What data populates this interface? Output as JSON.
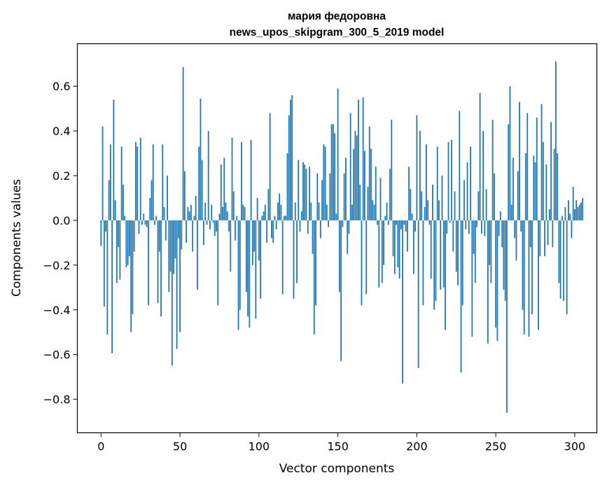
{
  "chart_data": {
    "type": "bar",
    "title": "мария федоровна",
    "subtitle": "news_upos_skipgram_300_5_2019 model",
    "xlabel": "Vector components",
    "ylabel": "Components values",
    "xlim": [
      -15,
      314
    ],
    "ylim": [
      -0.95,
      0.79
    ],
    "xticks": [
      0,
      50,
      100,
      150,
      200,
      250,
      300
    ],
    "yticks": [
      -0.8,
      -0.6,
      -0.4,
      -0.2,
      0.0,
      0.2,
      0.4,
      0.6
    ],
    "ytick_labels": [
      "−0.8",
      "−0.6",
      "−0.4",
      "−0.2",
      "0.0",
      "0.2",
      "0.4",
      "0.6"
    ],
    "grid": false,
    "bar_color": "#1f77b4",
    "values": [
      -0.115,
      0.42,
      -0.385,
      -0.05,
      -0.51,
      0.18,
      0.34,
      -0.595,
      0.54,
      0.09,
      -0.28,
      -0.12,
      -0.265,
      0.33,
      0.16,
      0.02,
      -0.21,
      -0.2,
      -0.16,
      -0.5,
      -0.42,
      -0.14,
      0.35,
      0.33,
      -0.06,
      0.37,
      -0.02,
      0.03,
      -0.02,
      -0.03,
      -0.38,
      0.1,
      0.18,
      0.34,
      -0.02,
      0.02,
      -0.37,
      -0.14,
      -0.43,
      0.34,
      0.06,
      -0.09,
      0.2,
      -0.32,
      -0.23,
      -0.65,
      -0.24,
      -0.17,
      -0.575,
      -0.08,
      -0.5,
      -0.13,
      0.685,
      0.22,
      -0.1,
      0.06,
      0.04,
      0.07,
      -0.14,
      0.02,
      0.11,
      -0.31,
      0.33,
      0.545,
      0.27,
      -0.11,
      0.08,
      -0.02,
      0.4,
      -0.04,
      0.07,
      -0.01,
      -0.07,
      -0.05,
      -0.38,
      0.03,
      0.25,
      0.06,
      0.28,
      0.08,
      0.04,
      -0.05,
      -0.23,
      0.37,
      0.13,
      -0.09,
      0.02,
      -0.49,
      -0.4,
      0.35,
      0.07,
      0.06,
      -0.32,
      -0.43,
      -0.48,
      0.36,
      -0.2,
      -0.14,
      -0.44,
      0.1,
      -0.18,
      -0.35,
      0.02,
      0.04,
      0.07,
      -0.1,
      0.14,
      0.48,
      -0.08,
      -0.1,
      0.02,
      -0.04,
      0.08,
      0.12,
      0.07,
      -0.33,
      0.02,
      0.02,
      0.3,
      0.47,
      0.54,
      0.56,
      -0.35,
      0.08,
      -0.28,
      0.27,
      -0.05,
      0.04,
      0.26,
      0.25,
      0.23,
      -0.06,
      0.24,
      0.08,
      -0.15,
      -0.51,
      -0.38,
      0.21,
      0.08,
      -0.08,
      0.18,
      0.34,
      0.33,
      0.07,
      -0.03,
      0.21,
      0.43,
      0.43,
      0.39,
      0.03,
      0.59,
      -0.32,
      -0.63,
      -0.03,
      0.21,
      0.28,
      -0.15,
      -0.06,
      0.48,
      0.07,
      0.32,
      0.4,
      0.38,
      0.54,
      0.16,
      -0.38,
      0.55,
      0.31,
      -0.33,
      0.15,
      0.42,
      0.32,
      0.09,
      0.07,
      0.24,
      -0.02,
      -0.3,
      0.19,
      -0.28,
      -0.2,
      0.02,
      0.08,
      -0.02,
      0.23,
      0.45,
      -0.16,
      -0.24,
      -0.02,
      -0.21,
      -0.26,
      -0.04,
      -0.73,
      -0.02,
      -0.05,
      -0.14,
      0.24,
      0.14,
      0.03,
      -0.24,
      -0.05,
      0.47,
      -0.66,
      0.4,
      0.13,
      -0.38,
      0.06,
      0.34,
      0.09,
      -0.02,
      -0.26,
      0.16,
      -0.4,
      -0.36,
      0.33,
      0.09,
      -0.31,
      0.2,
      -0.3,
      -0.49,
      -0.06,
      0.35,
      -0.01,
      0.36,
      -0.14,
      0.13,
      -0.23,
      -0.29,
      0.49,
      -0.68,
      -0.38,
      0.18,
      -0.04,
      0.26,
      -0.06,
      0.33,
      -0.52,
      -0.15,
      -0.28,
      -0.03,
      0.13,
      0.57,
      -0.06,
      0.4,
      -0.07,
      0.14,
      -0.55,
      -0.2,
      -0.28,
      0.45,
      0.21,
      -0.48,
      -0.54,
      -0.07,
      0.04,
      -0.12,
      -0.31,
      -0.36,
      -0.86,
      0.43,
      0.6,
      0.07,
      0.28,
      -0.08,
      -0.18,
      0.22,
      0.53,
      -0.05,
      -0.4,
      -0.51,
      0.3,
      0.48,
      -0.52,
      -0.12,
      -0.42,
      0.29,
      0.26,
      0.46,
      -0.49,
      -0.16,
      0.52,
      0.35,
      -0.16,
      0.25,
      -0.11,
      0.05,
      0.44,
      -0.12,
      0.32,
      0.71,
      0.3,
      -0.28,
      -0.35,
      0.02,
      -0.36,
      0.06,
      -0.42,
      0.09,
      0.03,
      -0.08,
      0.15,
      0.05,
      0.09,
      0.06,
      0.07,
      0.08,
      0.1
    ]
  }
}
